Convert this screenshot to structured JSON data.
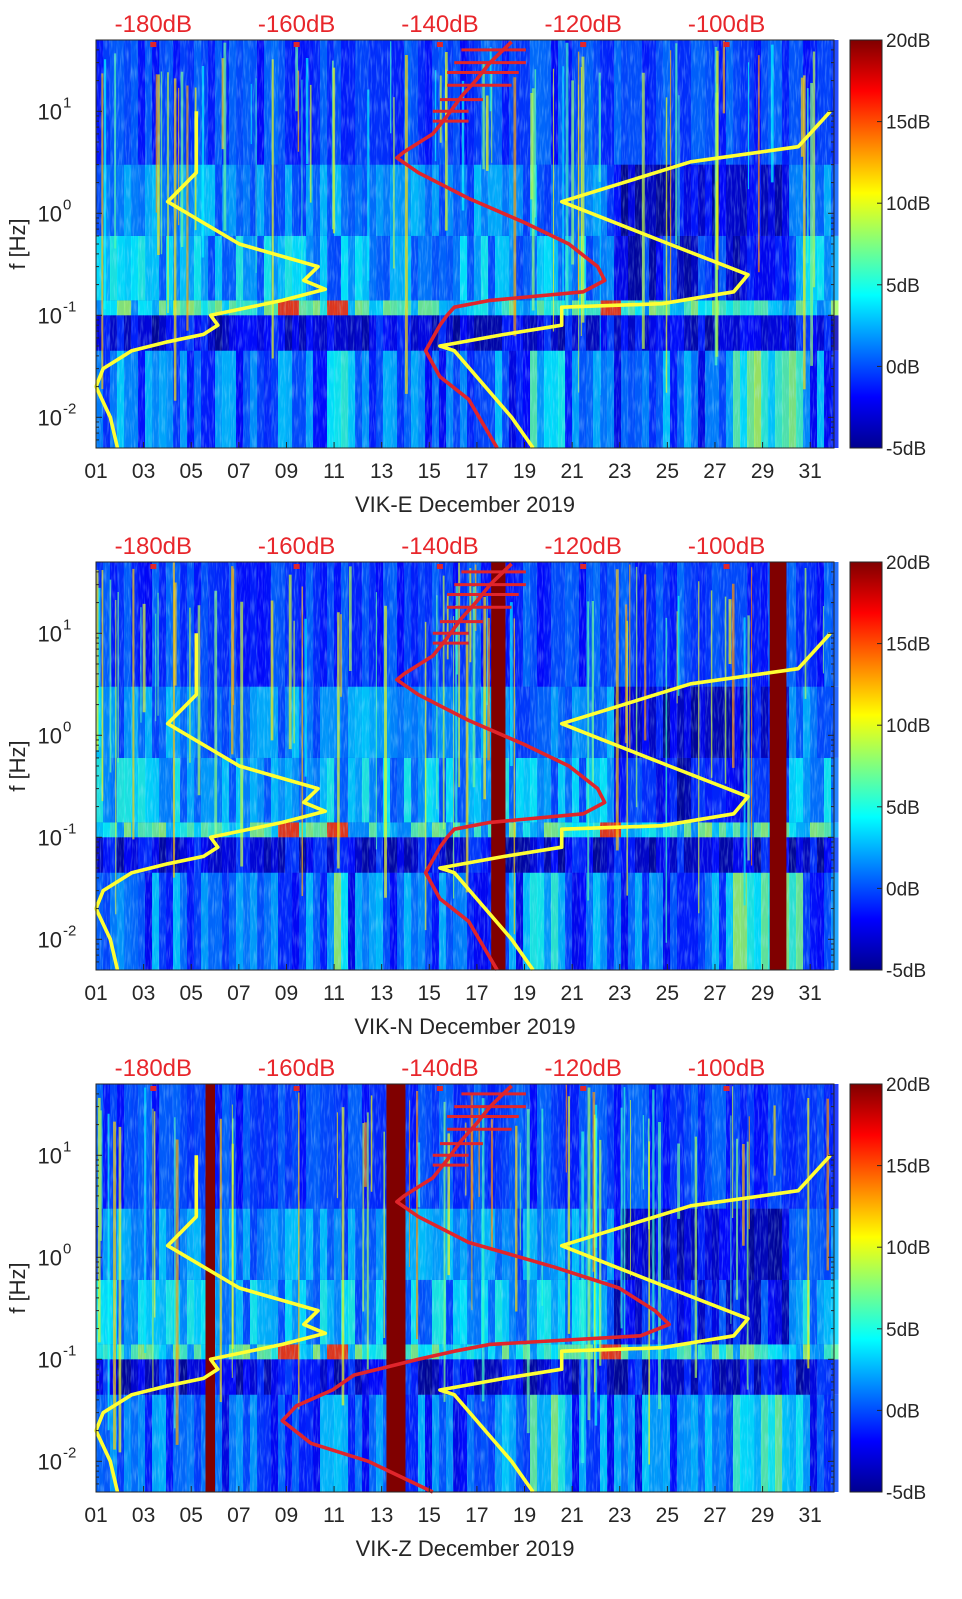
{
  "chart_data": [
    {
      "type": "heatmap",
      "xlabel": "VIK-E December 2019",
      "ylabel": "f [Hz]",
      "x_ticks": [
        "01",
        "03",
        "05",
        "07",
        "09",
        "11",
        "13",
        "15",
        "17",
        "19",
        "21",
        "23",
        "25",
        "27",
        "29",
        "31"
      ],
      "x_range": [
        1,
        32
      ],
      "y_scale": "log",
      "y_range": [
        0.005,
        50
      ],
      "y_ticks": [
        {
          "value": 10,
          "base": "10",
          "exp": "1"
        },
        {
          "value": 1,
          "base": "10",
          "exp": "0"
        },
        {
          "value": 0.1,
          "base": "10",
          "exp": "-1"
        },
        {
          "value": 0.01,
          "base": "10",
          "exp": "-2"
        }
      ],
      "top_axis_ticks": [
        "-180dB",
        "-160dB",
        "-140dB",
        "-120dB",
        "-100dB"
      ],
      "top_axis_range": [
        -188,
        -85
      ],
      "colorbar": {
        "ticks": [
          "20dB",
          "15dB",
          "10dB",
          "5dB",
          "0dB",
          "-5dB"
        ],
        "range": [
          -5,
          20
        ]
      },
      "dropout_bands": [],
      "series": [
        {
          "color": "#ffff33",
          "points": [
            [
              -174.0,
              10
            ],
            [
              -174.0,
              2.5
            ],
            [
              -178.0,
              1.3
            ],
            [
              -168.0,
              0.5
            ],
            [
              -157.0,
              0.3
            ],
            [
              -159.0,
              0.22
            ],
            [
              -156.0,
              0.18
            ],
            [
              -162.0,
              0.14
            ],
            [
              -172.0,
              0.1
            ],
            [
              -171.0,
              0.08
            ],
            [
              -173.0,
              0.065
            ],
            [
              -178.0,
              0.055
            ],
            [
              -183.0,
              0.045
            ],
            [
              -187.0,
              0.03
            ],
            [
              -188.0,
              0.02
            ],
            [
              -186.0,
              0.01
            ],
            [
              -185.0,
              0.005
            ]
          ]
        },
        {
          "color": "#ffff33",
          "points": [
            [
              -85.5,
              10
            ],
            [
              -90.0,
              4.5
            ],
            [
              -105.0,
              3.2
            ],
            [
              -123.0,
              1.3
            ],
            [
              -108.0,
              0.5
            ],
            [
              -97.0,
              0.25
            ],
            [
              -99.0,
              0.17
            ],
            [
              -109.0,
              0.13
            ],
            [
              -123.0,
              0.12
            ],
            [
              -123.0,
              0.08
            ],
            [
              -131.0,
              0.065
            ],
            [
              -140.0,
              0.05
            ],
            [
              -138.0,
              0.045
            ],
            [
              -130.0,
              0.01
            ],
            [
              -127.0,
              0.005
            ]
          ]
        },
        {
          "color": "#e0252b",
          "points": [
            [
              -130.0,
              48
            ],
            [
              -133.0,
              30
            ],
            [
              -135.0,
              20
            ],
            [
              -137.0,
              14
            ],
            [
              -139.0,
              9
            ],
            [
              -141.0,
              6
            ],
            [
              -145.0,
              4
            ],
            [
              -146.0,
              3.5
            ],
            [
              -143.0,
              2.5
            ],
            [
              -136.0,
              1.4
            ],
            [
              -128.0,
              0.8
            ],
            [
              -122.0,
              0.5
            ],
            [
              -118.0,
              0.3
            ],
            [
              -117.0,
              0.22
            ],
            [
              -120.0,
              0.17
            ],
            [
              -133.0,
              0.14
            ],
            [
              -138.0,
              0.12
            ],
            [
              -139.0,
              0.1
            ],
            [
              -140.0,
              0.08
            ],
            [
              -141.0,
              0.06
            ],
            [
              -142.0,
              0.045
            ],
            [
              -140.0,
              0.025
            ],
            [
              -136.0,
              0.015
            ],
            [
              -132.0,
              0.005
            ]
          ]
        }
      ]
    },
    {
      "type": "heatmap",
      "xlabel": "VIK-N December 2019",
      "ylabel": "f [Hz]",
      "x_ticks": [
        "01",
        "03",
        "05",
        "07",
        "09",
        "11",
        "13",
        "15",
        "17",
        "19",
        "21",
        "23",
        "25",
        "27",
        "29",
        "31"
      ],
      "x_range": [
        1,
        32
      ],
      "y_scale": "log",
      "y_range": [
        0.005,
        50
      ],
      "y_ticks": [
        {
          "value": 10,
          "base": "10",
          "exp": "1"
        },
        {
          "value": 1,
          "base": "10",
          "exp": "0"
        },
        {
          "value": 0.1,
          "base": "10",
          "exp": "-1"
        },
        {
          "value": 0.01,
          "base": "10",
          "exp": "-2"
        }
      ],
      "top_axis_ticks": [
        "-180dB",
        "-160dB",
        "-140dB",
        "-120dB",
        "-100dB"
      ],
      "top_axis_range": [
        -188,
        -85
      ],
      "colorbar": {
        "ticks": [
          "20dB",
          "15dB",
          "10dB",
          "5dB",
          "0dB",
          "-5dB"
        ],
        "range": [
          -5,
          20
        ]
      },
      "dropout_bands": [
        [
          17.6,
          18.2
        ],
        [
          29.3,
          30.0
        ]
      ],
      "series": [
        {
          "color": "#ffff33",
          "points": [
            [
              -174.0,
              10
            ],
            [
              -174.0,
              2.5
            ],
            [
              -178.0,
              1.3
            ],
            [
              -168.0,
              0.5
            ],
            [
              -157.0,
              0.3
            ],
            [
              -159.0,
              0.22
            ],
            [
              -156.0,
              0.18
            ],
            [
              -162.0,
              0.14
            ],
            [
              -172.0,
              0.1
            ],
            [
              -171.0,
              0.08
            ],
            [
              -173.0,
              0.065
            ],
            [
              -178.0,
              0.055
            ],
            [
              -183.0,
              0.045
            ],
            [
              -187.0,
              0.03
            ],
            [
              -188.0,
              0.02
            ],
            [
              -186.0,
              0.01
            ],
            [
              -185.0,
              0.005
            ]
          ]
        },
        {
          "color": "#ffff33",
          "points": [
            [
              -85.5,
              10
            ],
            [
              -90.0,
              4.5
            ],
            [
              -105.0,
              3.2
            ],
            [
              -123.0,
              1.3
            ],
            [
              -108.0,
              0.5
            ],
            [
              -97.0,
              0.25
            ],
            [
              -99.0,
              0.17
            ],
            [
              -109.0,
              0.13
            ],
            [
              -123.0,
              0.12
            ],
            [
              -123.0,
              0.08
            ],
            [
              -131.0,
              0.065
            ],
            [
              -140.0,
              0.05
            ],
            [
              -138.0,
              0.045
            ],
            [
              -130.0,
              0.01
            ],
            [
              -127.0,
              0.005
            ]
          ]
        },
        {
          "color": "#e0252b",
          "points": [
            [
              -130.0,
              48
            ],
            [
              -133.0,
              30
            ],
            [
              -135.0,
              20
            ],
            [
              -137.0,
              14
            ],
            [
              -139.0,
              9
            ],
            [
              -141.0,
              6
            ],
            [
              -145.0,
              4
            ],
            [
              -146.0,
              3.5
            ],
            [
              -143.0,
              2.5
            ],
            [
              -136.0,
              1.4
            ],
            [
              -128.0,
              0.8
            ],
            [
              -122.0,
              0.5
            ],
            [
              -118.0,
              0.3
            ],
            [
              -117.0,
              0.22
            ],
            [
              -120.0,
              0.17
            ],
            [
              -133.0,
              0.14
            ],
            [
              -138.0,
              0.12
            ],
            [
              -139.0,
              0.1
            ],
            [
              -140.0,
              0.08
            ],
            [
              -141.0,
              0.06
            ],
            [
              -142.0,
              0.045
            ],
            [
              -140.0,
              0.025
            ],
            [
              -136.0,
              0.015
            ],
            [
              -132.0,
              0.005
            ]
          ]
        }
      ]
    },
    {
      "type": "heatmap",
      "xlabel": "VIK-Z December 2019",
      "ylabel": "f [Hz]",
      "x_ticks": [
        "01",
        "03",
        "05",
        "07",
        "09",
        "11",
        "13",
        "15",
        "17",
        "19",
        "21",
        "23",
        "25",
        "27",
        "29",
        "31"
      ],
      "x_range": [
        1,
        32
      ],
      "y_scale": "log",
      "y_range": [
        0.005,
        50
      ],
      "y_ticks": [
        {
          "value": 10,
          "base": "10",
          "exp": "1"
        },
        {
          "value": 1,
          "base": "10",
          "exp": "0"
        },
        {
          "value": 0.1,
          "base": "10",
          "exp": "-1"
        },
        {
          "value": 0.01,
          "base": "10",
          "exp": "-2"
        }
      ],
      "top_axis_ticks": [
        "-180dB",
        "-160dB",
        "-140dB",
        "-120dB",
        "-100dB"
      ],
      "top_axis_range": [
        -188,
        -85
      ],
      "colorbar": {
        "ticks": [
          "20dB",
          "15dB",
          "10dB",
          "5dB",
          "0dB",
          "-5dB"
        ],
        "range": [
          -5,
          20
        ]
      },
      "dropout_bands": [
        [
          5.6,
          6.0
        ],
        [
          13.2,
          14.0
        ]
      ],
      "series": [
        {
          "color": "#ffff33",
          "points": [
            [
              -174.0,
              10
            ],
            [
              -174.0,
              2.5
            ],
            [
              -178.0,
              1.3
            ],
            [
              -168.0,
              0.5
            ],
            [
              -157.0,
              0.3
            ],
            [
              -159.0,
              0.22
            ],
            [
              -156.0,
              0.18
            ],
            [
              -162.0,
              0.14
            ],
            [
              -172.0,
              0.1
            ],
            [
              -171.0,
              0.08
            ],
            [
              -173.0,
              0.065
            ],
            [
              -178.0,
              0.055
            ],
            [
              -183.0,
              0.045
            ],
            [
              -187.0,
              0.03
            ],
            [
              -188.0,
              0.02
            ],
            [
              -186.0,
              0.01
            ],
            [
              -185.0,
              0.005
            ]
          ]
        },
        {
          "color": "#ffff33",
          "points": [
            [
              -85.5,
              10
            ],
            [
              -90.0,
              4.5
            ],
            [
              -105.0,
              3.2
            ],
            [
              -123.0,
              1.3
            ],
            [
              -108.0,
              0.5
            ],
            [
              -97.0,
              0.25
            ],
            [
              -99.0,
              0.17
            ],
            [
              -109.0,
              0.13
            ],
            [
              -123.0,
              0.12
            ],
            [
              -123.0,
              0.08
            ],
            [
              -131.0,
              0.065
            ],
            [
              -140.0,
              0.05
            ],
            [
              -138.0,
              0.045
            ],
            [
              -130.0,
              0.01
            ],
            [
              -127.0,
              0.005
            ]
          ]
        },
        {
          "color": "#e0252b",
          "points": [
            [
              -130.0,
              48
            ],
            [
              -133.0,
              30
            ],
            [
              -135.0,
              20
            ],
            [
              -137.0,
              14
            ],
            [
              -139.0,
              9
            ],
            [
              -141.0,
              6
            ],
            [
              -145.0,
              4
            ],
            [
              -146.0,
              3.5
            ],
            [
              -143.0,
              2.5
            ],
            [
              -136.0,
              1.4
            ],
            [
              -124.0,
              0.8
            ],
            [
              -115.0,
              0.5
            ],
            [
              -110.0,
              0.3
            ],
            [
              -108.0,
              0.22
            ],
            [
              -112.0,
              0.17
            ],
            [
              -133.0,
              0.14
            ],
            [
              -138.0,
              0.12
            ],
            [
              -143.0,
              0.1
            ],
            [
              -152.0,
              0.07
            ],
            [
              -155.0,
              0.05
            ],
            [
              -160.0,
              0.035
            ],
            [
              -162.0,
              0.025
            ],
            [
              -158.0,
              0.015
            ],
            [
              -150.0,
              0.01
            ],
            [
              -141.0,
              0.005
            ]
          ]
        }
      ]
    }
  ]
}
